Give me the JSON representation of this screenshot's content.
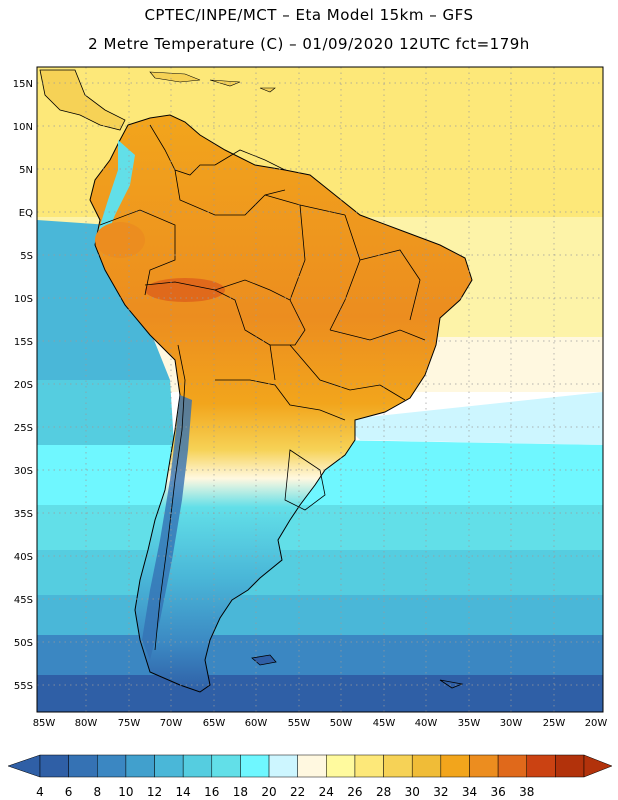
{
  "header": {
    "title_line1": "CPTEC/INPE/MCT –  Eta Model 15km – GFS",
    "title_line2": "2 Metre Temperature (C) – 01/09/2020 12UTC fct=179h"
  },
  "axes": {
    "lat_labels": [
      "15N",
      "10N",
      "5N",
      "EQ",
      "5S",
      "10S",
      "15S",
      "20S",
      "25S",
      "30S",
      "35S",
      "40S",
      "45S",
      "50S",
      "55S"
    ],
    "lon_labels": [
      "85W",
      "80W",
      "75W",
      "70W",
      "65W",
      "60W",
      "55W",
      "50W",
      "45W",
      "40W",
      "35W",
      "30W",
      "25W",
      "20W"
    ]
  },
  "legend": {
    "values": [
      "4",
      "6",
      "8",
      "10",
      "12",
      "14",
      "16",
      "18",
      "20",
      "22",
      "24",
      "26",
      "28",
      "30",
      "32",
      "34",
      "36",
      "38"
    ],
    "colors": [
      "#2f5fa6",
      "#3572b4",
      "#3b87c2",
      "#41a0cd",
      "#4ab7d8",
      "#55cde0",
      "#62dfe8",
      "#6ff7ff",
      "#cdf6ff",
      "#fff8e0",
      "#fffa9e",
      "#fde879",
      "#f6d256",
      "#f0bc37",
      "#f2a51c",
      "#ec8d1f",
      "#e0691b",
      "#cb4212",
      "#b2320b"
    ]
  },
  "map": {
    "ocean_bands": [
      {
        "color": "#fde879"
      },
      {
        "color": "#fdf3a8"
      },
      {
        "color": "#fff8e0"
      },
      {
        "color": "#cdf6ff"
      },
      {
        "color": "#6ff7ff"
      },
      {
        "color": "#62dfe8"
      },
      {
        "color": "#55cde0"
      },
      {
        "color": "#4ab7d8"
      },
      {
        "color": "#3b87c2"
      },
      {
        "color": "#2f5fa6"
      }
    ]
  }
}
